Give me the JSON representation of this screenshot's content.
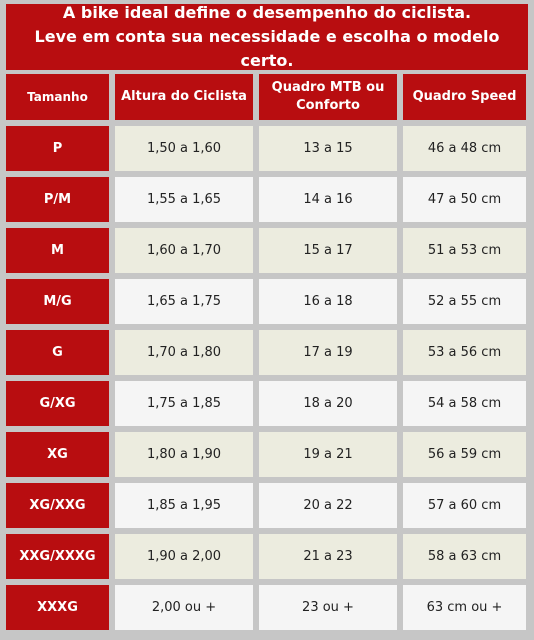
{
  "banner": {
    "line1": "A bike ideal define o desempenho do ciclista.",
    "line2": "Leve em conta sua necessidade e escolha o modelo certo."
  },
  "table": {
    "headers": [
      "Tamanho",
      "Altura do Ciclista",
      "Quadro MTB ou\nConforto",
      "Quadro Speed"
    ],
    "rows": [
      [
        "P",
        "1,50 a 1,60",
        "13 a 15",
        "46 a 48 cm"
      ],
      [
        "P/M",
        "1,55 a 1,65",
        "14 a 16",
        "47 a 50 cm"
      ],
      [
        "M",
        "1,60 a 1,70",
        "15 a 17",
        "51 a 53 cm"
      ],
      [
        "M/G",
        "1,65 a 1,75",
        "16 a 18",
        "52 a 55 cm"
      ],
      [
        "G",
        "1,70 a 1,80",
        "17 a 19",
        "53 a 56 cm"
      ],
      [
        "G/XG",
        "1,75 a 1,85",
        "18 a 20",
        "54 a 58 cm"
      ],
      [
        "XG",
        "1,80 a 1,90",
        "19 a 21",
        "56 a 59 cm"
      ],
      [
        "XG/XXG",
        "1,85 a 1,95",
        "20 a 22",
        "57 a 60 cm"
      ],
      [
        "XXG/XXXG",
        "1,90 a 2,00",
        "21 a 23",
        "58 a 63 cm"
      ],
      [
        "XXXG",
        "2,00 ou +",
        "23 ou +",
        "63 cm ou +"
      ]
    ]
  },
  "colors": {
    "accent_red": "#b80d10",
    "row_odd": "#ececdf",
    "row_even": "#f5f5f5",
    "background": "#c6c6c6"
  }
}
